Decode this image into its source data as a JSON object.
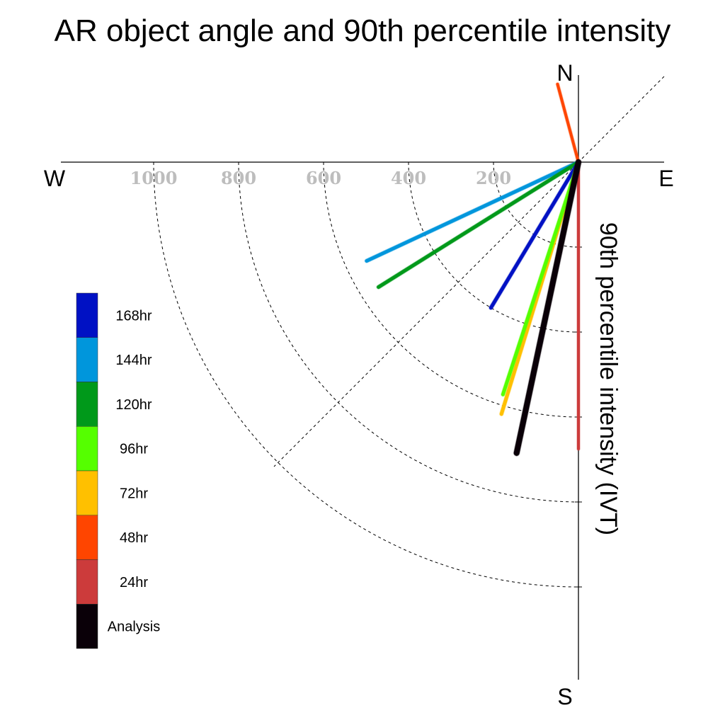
{
  "chart_data": {
    "type": "polar_vector",
    "title": "AR object angle and 90th percentile intensity",
    "ylabel": "90th percentile intensity (IVT)",
    "directions": {
      "north": "N",
      "south": "S",
      "east": "E",
      "west": "W"
    },
    "radial_ticks": [
      {
        "value": 200,
        "label": "200"
      },
      {
        "value": 400,
        "label": "400"
      },
      {
        "value": 600,
        "label": "600"
      },
      {
        "value": 800,
        "label": "800"
      },
      {
        "value": 1000,
        "label": "1000"
      }
    ],
    "radial_range": [
      0,
      1200
    ],
    "grid": true,
    "legend_position": "left",
    "series": [
      {
        "name": "168hr",
        "color": "#0011c4",
        "angle_deg": 211,
        "intensity": 400
      },
      {
        "name": "144hr",
        "color": "#0096dc",
        "angle_deg": 245,
        "intensity": 550
      },
      {
        "name": "120hr",
        "color": "#00991a",
        "angle_deg": 238,
        "intensity": 555
      },
      {
        "name": "96hr",
        "color": "#55ff00",
        "angle_deg": 198,
        "intensity": 575
      },
      {
        "name": "72hr",
        "color": "#ffc000",
        "angle_deg": 197,
        "intensity": 620
      },
      {
        "name": "48hr",
        "color": "#ff4500",
        "angle_deg": 345,
        "intensity": 190
      },
      {
        "name": "24hr",
        "color": "#cc3b3b",
        "angle_deg": 180,
        "intensity": 675
      },
      {
        "name": "Analysis",
        "color": "#0a0008",
        "angle_deg": 192,
        "intensity": 700
      }
    ]
  }
}
